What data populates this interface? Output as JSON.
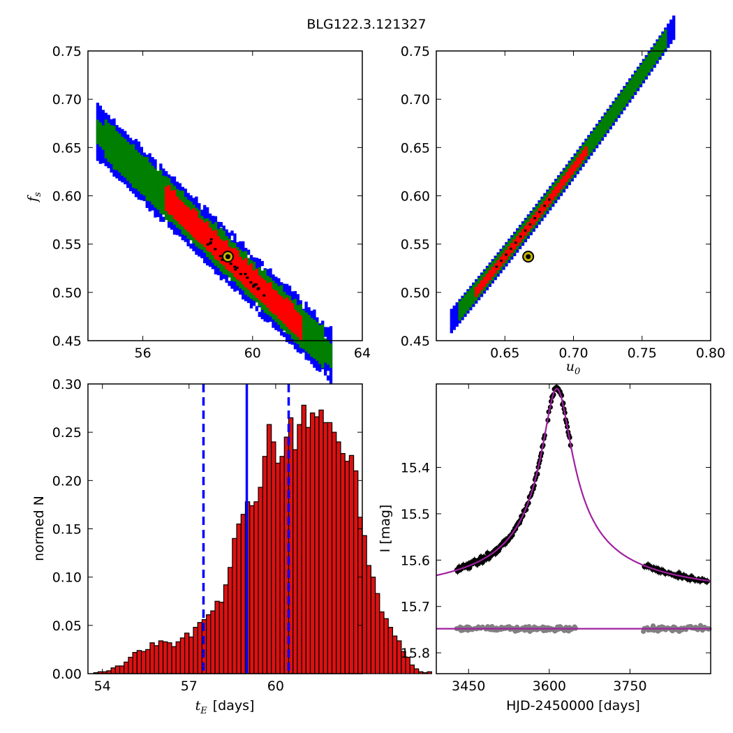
{
  "figure_title": "BLG122.3.121327",
  "colors": {
    "sigma3": "#0000ff",
    "sigma2": "#007f00",
    "sigma1": "#ff0000",
    "best": "#000000",
    "marker": "#c8b400",
    "bar": "#dd1111",
    "median_line": "#0000ff",
    "model": "#a020a0",
    "data_main": "#000000",
    "data_resid": "#808080"
  },
  "chart_data": [
    {
      "type": "heatmap",
      "panel": "tE-fs",
      "ylabel_sym": "f",
      "ylabel_sub": "s",
      "xlabel": "",
      "xlim": [
        54,
        64
      ],
      "ylim": [
        0.45,
        0.75
      ],
      "xticks": [
        "56",
        "60",
        "64"
      ],
      "yticks": [
        "0.45",
        "0.50",
        "0.55",
        "0.60",
        "0.65",
        "0.70",
        "0.75"
      ],
      "relation": {
        "slope": -0.0272,
        "intercept": 2.1418
      },
      "x_extent": [
        54.3,
        62.9
      ],
      "best_fit": {
        "x": 59.1,
        "y": 0.537
      },
      "grid": false
    },
    {
      "type": "heatmap",
      "panel": "u0-fs",
      "xlabel_sym": "u",
      "xlabel_sub": "0",
      "xlim": [
        0.6,
        0.8
      ],
      "ylim": [
        0.45,
        0.75
      ],
      "xticks": [
        "0.65",
        "0.70",
        "0.75",
        "0.80"
      ],
      "yticks": [
        "0.45",
        "0.50",
        "0.55",
        "0.60",
        "0.65",
        "0.70",
        "0.75"
      ],
      "relation": {
        "a": 0.469,
        "b": 1.68,
        "c": 1.2
      },
      "x_extent": [
        0.61,
        0.774
      ],
      "best_fit": {
        "x": 0.667,
        "y": 0.537
      },
      "grid": false
    },
    {
      "type": "bar",
      "panel": "tE-histogram",
      "xlabel_sym": "t",
      "xlabel_sub": "E",
      "xlabel_unit": "[days]",
      "ylabel": "normed N",
      "xlim": [
        53.5,
        63.0
      ],
      "ylim": [
        0,
        0.3
      ],
      "xticks": [
        "54",
        "57",
        "60"
      ],
      "yticks": [
        "0.00",
        "0.05",
        "0.10",
        "0.15",
        "0.20",
        "0.25",
        "0.30"
      ],
      "bin_start": 53.55,
      "bin_width": 0.15,
      "values": [
        0.0,
        0.001,
        0.002,
        0.002,
        0.003,
        0.006,
        0.008,
        0.008,
        0.012,
        0.017,
        0.022,
        0.024,
        0.023,
        0.025,
        0.032,
        0.029,
        0.034,
        0.033,
        0.032,
        0.028,
        0.033,
        0.037,
        0.042,
        0.038,
        0.048,
        0.053,
        0.056,
        0.061,
        0.065,
        0.075,
        0.074,
        0.092,
        0.11,
        0.14,
        0.155,
        0.165,
        0.178,
        0.174,
        0.178,
        0.193,
        0.225,
        0.258,
        0.24,
        0.218,
        0.225,
        0.245,
        0.265,
        0.232,
        0.258,
        0.278,
        0.255,
        0.27,
        0.266,
        0.273,
        0.26,
        0.26,
        0.25,
        0.24,
        0.228,
        0.22,
        0.226,
        0.21,
        0.162,
        0.143,
        0.112,
        0.1,
        0.083,
        0.064,
        0.057,
        0.048,
        0.039,
        0.034,
        0.023,
        0.017,
        0.009,
        0.005,
        0.002,
        0.001,
        0.002,
        0.0
      ],
      "median": 59.0,
      "lower": 57.5,
      "upper": 60.45,
      "grid": false
    },
    {
      "type": "scatter",
      "panel": "lightcurve",
      "xlabel": "HJD-2450000 [days]",
      "ylabel": "I [mag]",
      "xlim": [
        3390,
        3900
      ],
      "ylim": [
        15.845,
        15.22
      ],
      "xticks": [
        "3450",
        "3600",
        "3750"
      ],
      "yticks": [
        "15.4",
        "15.5",
        "15.6",
        "15.7",
        "15.8"
      ],
      "model": {
        "t0": 3614,
        "baseline": 15.69,
        "amp": 0.46,
        "tau": 28
      },
      "residual_level": 15.748,
      "observing_windows": [
        [
          3428,
          3640
        ],
        [
          3775,
          3900
        ]
      ],
      "grid": false
    }
  ]
}
